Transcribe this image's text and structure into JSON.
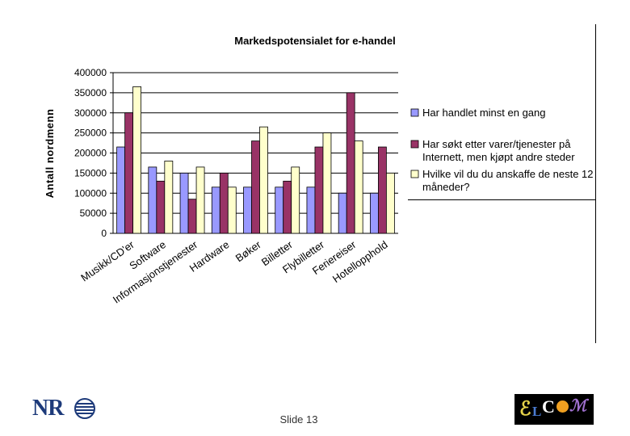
{
  "chart_data": {
    "type": "bar",
    "title": "Markedspotensialet for e-handel",
    "ylabel": "Antall nordmenn",
    "ylim": [
      0,
      400000
    ],
    "yticks": [
      0,
      50000,
      100000,
      150000,
      200000,
      250000,
      300000,
      350000,
      400000
    ],
    "grid": true,
    "legend_position": "right",
    "categories": [
      "Musikk/CD'er",
      "Software",
      "Informasjonstjenester",
      "Hardware",
      "Bøker",
      "Billetter",
      "Flybilletter",
      "Feriereiser",
      "Hotellopphold"
    ],
    "series": [
      {
        "name": "Har handlet minst en gang",
        "color": "#9999ff",
        "values": [
          215000,
          165000,
          150000,
          115000,
          115000,
          115000,
          115000,
          100000,
          100000
        ]
      },
      {
        "name": "Har søkt etter varer/tjenester på Internett, men kjøpt andre steder",
        "color": "#993366",
        "values": [
          300000,
          130000,
          85000,
          150000,
          230000,
          130000,
          215000,
          350000,
          215000
        ]
      },
      {
        "name": "Hvilke vil du du anskaffe de neste 12 måneder?",
        "color": "#ffffcc",
        "values": [
          365000,
          180000,
          165000,
          115000,
          265000,
          165000,
          250000,
          230000,
          150000
        ]
      }
    ]
  },
  "footer": {
    "slide_label": "Slide 13",
    "logo_left": "NR",
    "logo_right": "ELCOM"
  }
}
